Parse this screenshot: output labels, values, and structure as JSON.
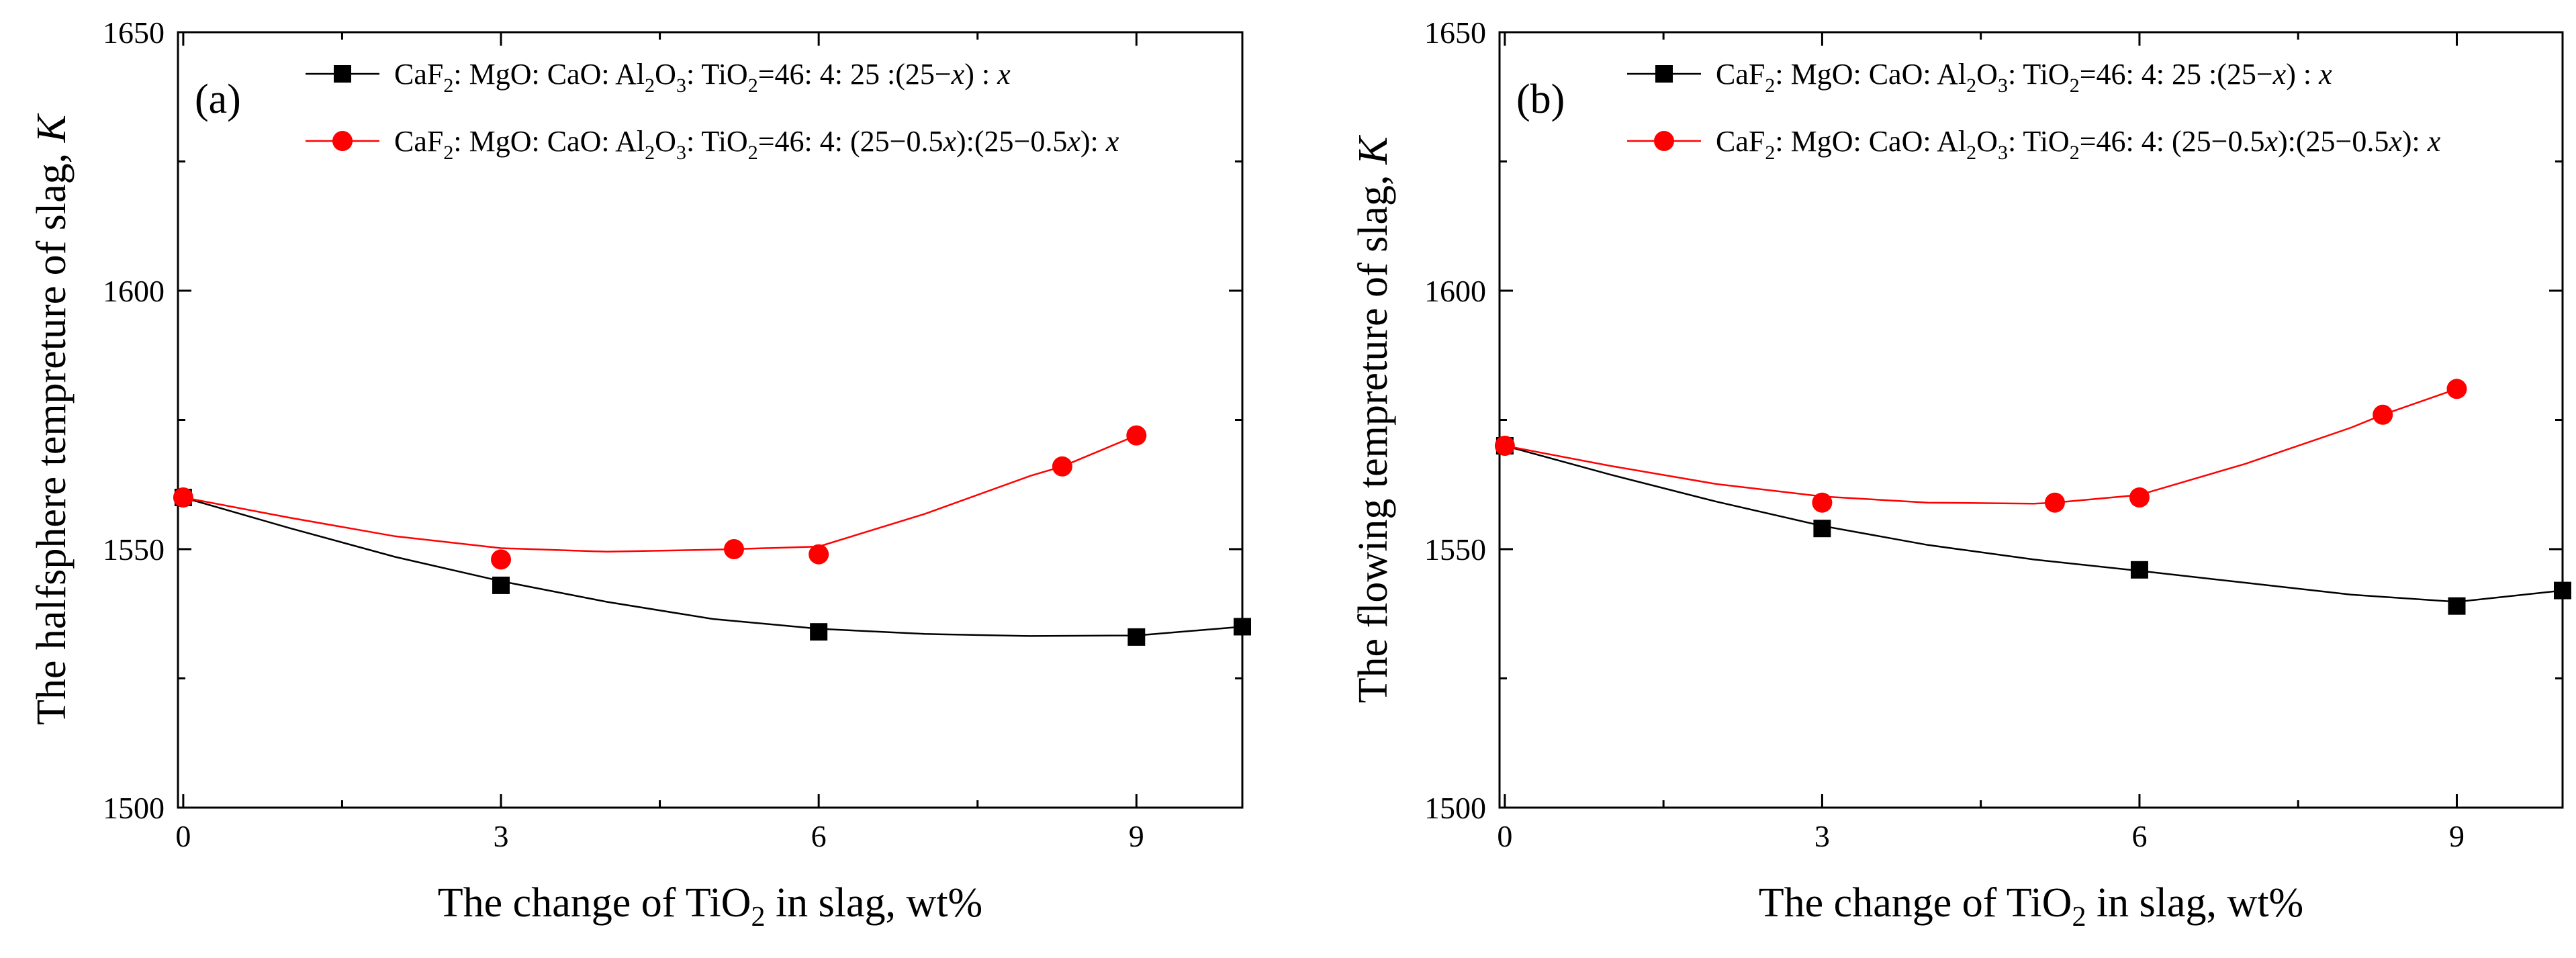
{
  "figure": {
    "charts_note": ""
  },
  "chart_data": [
    {
      "type": "line",
      "panel_label": "(a)",
      "title": "",
      "xlabel": "The change of TiO2 in slag, wt%",
      "xlabel_parts": {
        "pre": "The change of TiO",
        "sub": "2",
        "post": " in slag, wt%"
      },
      "ylabel": "The halfsphere tempreture of slag, K",
      "ylabel_parts": {
        "main": "The halfsphere tempreture of slag, ",
        "ital": "K"
      },
      "xlim": [
        -0.05,
        10
      ],
      "ylim": [
        1500,
        1650
      ],
      "xticks": [
        0,
        3,
        6,
        9
      ],
      "xtick_labels": [
        "0",
        "3",
        "6",
        "9"
      ],
      "yticks": [
        1500,
        1550,
        1600,
        1650
      ],
      "ytick_labels": [
        "1500",
        "1550",
        "1600",
        "1650"
      ],
      "grid": false,
      "legend_position": "top-right",
      "series": [
        {
          "name": "CaF2: MgO: CaO: Al2O3: TiO2=46: 4: 25 :(25−x) : x",
          "legend_prefix": "CaF",
          "legend_tail": ": 25          :(25−x)      : x",
          "color": "#000000",
          "marker": "square",
          "x": [
            0,
            3,
            6,
            9,
            10
          ],
          "y": [
            1560,
            1543,
            1534,
            1533,
            1535
          ],
          "curve_x": [
            0,
            1,
            2,
            3,
            4,
            5,
            6,
            7,
            8,
            9,
            10
          ],
          "curve_y": [
            1560,
            1554.1,
            1548.5,
            1543.8,
            1539.8,
            1536.5,
            1534.6,
            1533.6,
            1533.2,
            1533.3,
            1535
          ]
        },
        {
          "name": "CaF2: MgO: CaO: Al2O3: TiO2=46: 4: (25−0.5x):(25−0.5x): x",
          "legend_prefix": "CaF",
          "legend_tail": ": (25−0.5x):(25−0.5x): x",
          "color": "#ff0000",
          "marker": "circle",
          "x": [
            0,
            3,
            5.2,
            6,
            8.3,
            9
          ],
          "y": [
            1560,
            1548,
            1550,
            1549,
            1566,
            1572
          ],
          "curve_x": [
            0,
            1,
            2,
            3,
            4,
            5,
            5.2,
            6,
            7,
            8,
            8.3,
            9
          ],
          "curve_y": [
            1560,
            1556.1,
            1552.5,
            1550.2,
            1549.5,
            1549.9,
            1550,
            1550.5,
            1556.8,
            1564.2,
            1566,
            1572
          ]
        }
      ]
    },
    {
      "type": "line",
      "panel_label": "(b)",
      "title": "",
      "xlabel": "The change of TiO2 in slag, wt%",
      "xlabel_parts": {
        "pre": "The change of TiO",
        "sub": "2",
        "post": " in slag, wt%"
      },
      "ylabel": "The flowing tempreture of slag, K",
      "ylabel_parts": {
        "main": "The flowing tempreture of slag, ",
        "ital": "K"
      },
      "xlim": [
        -0.05,
        10
      ],
      "ylim": [
        1500,
        1650
      ],
      "xticks": [
        0,
        3,
        6,
        9
      ],
      "xtick_labels": [
        "0",
        "3",
        "6",
        "9"
      ],
      "yticks": [
        1500,
        1550,
        1600,
        1650
      ],
      "ytick_labels": [
        "1500",
        "1550",
        "1600",
        "1650"
      ],
      "grid": false,
      "legend_position": "top-right",
      "series": [
        {
          "name": "CaF2: MgO: CaO: Al2O3: TiO2=46: 4: 25 :(25−x) : x",
          "legend_prefix": "CaF",
          "legend_tail": ": 25          :(25−x)      : x",
          "color": "#000000",
          "marker": "square",
          "x": [
            0,
            3,
            6,
            9,
            10
          ],
          "y": [
            1570,
            1554,
            1546,
            1539,
            1542
          ],
          "curve_x": [
            0,
            1,
            2,
            3,
            4,
            5,
            6,
            7,
            8,
            9,
            10
          ],
          "curve_y": [
            1570,
            1564.4,
            1559.2,
            1554.5,
            1550.8,
            1548,
            1545.8,
            1543.5,
            1541.2,
            1539.8,
            1542
          ]
        },
        {
          "name": "CaF2: MgO: CaO: Al2O3: TiO2=46: 4: (25−0.5x):(25−0.5x): x",
          "legend_prefix": "CaF",
          "legend_tail": ": (25−0.5x):(25−0.5x): x",
          "color": "#ff0000",
          "marker": "circle",
          "x": [
            0,
            3,
            5.2,
            6,
            8.3,
            9
          ],
          "y": [
            1570,
            1559,
            1559,
            1560,
            1576,
            1581
          ],
          "curve_x": [
            0,
            1,
            2,
            3,
            4,
            5,
            5.2,
            6,
            7,
            8,
            8.3,
            9
          ],
          "curve_y": [
            1570,
            1566.1,
            1562.6,
            1560.2,
            1559,
            1558.8,
            1559,
            1560.5,
            1566.5,
            1573.5,
            1576,
            1581
          ]
        }
      ]
    }
  ]
}
